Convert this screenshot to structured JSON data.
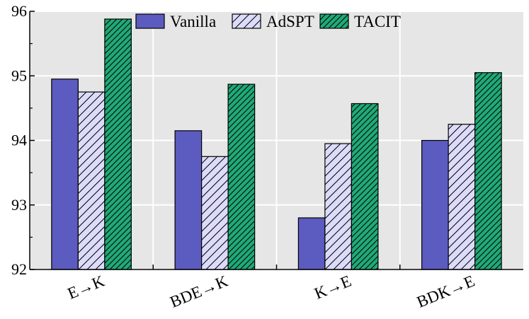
{
  "chart_data": {
    "type": "bar",
    "categories": [
      "E→K",
      "BDE→K",
      "K→E",
      "BDK→E"
    ],
    "series": [
      {
        "name": "Vanilla",
        "values": [
          94.95,
          94.15,
          92.8,
          94.0
        ],
        "color": "#5b5bc0",
        "pattern": "solid"
      },
      {
        "name": "AdSPT",
        "values": [
          94.75,
          93.75,
          93.95,
          94.25
        ],
        "color": "#dcdcfa",
        "pattern": "hatch"
      },
      {
        "name": "TACIT",
        "values": [
          95.88,
          94.87,
          94.57,
          95.05
        ],
        "color": "#1faa78",
        "pattern": "hatch"
      }
    ],
    "title": "",
    "xlabel": "",
    "ylabel": "",
    "ylim": [
      92,
      96
    ],
    "yticks": [
      "92",
      "93",
      "94",
      "95",
      "96"
    ],
    "grid": true,
    "legend_position": "top",
    "background": "#e6e6e6"
  }
}
